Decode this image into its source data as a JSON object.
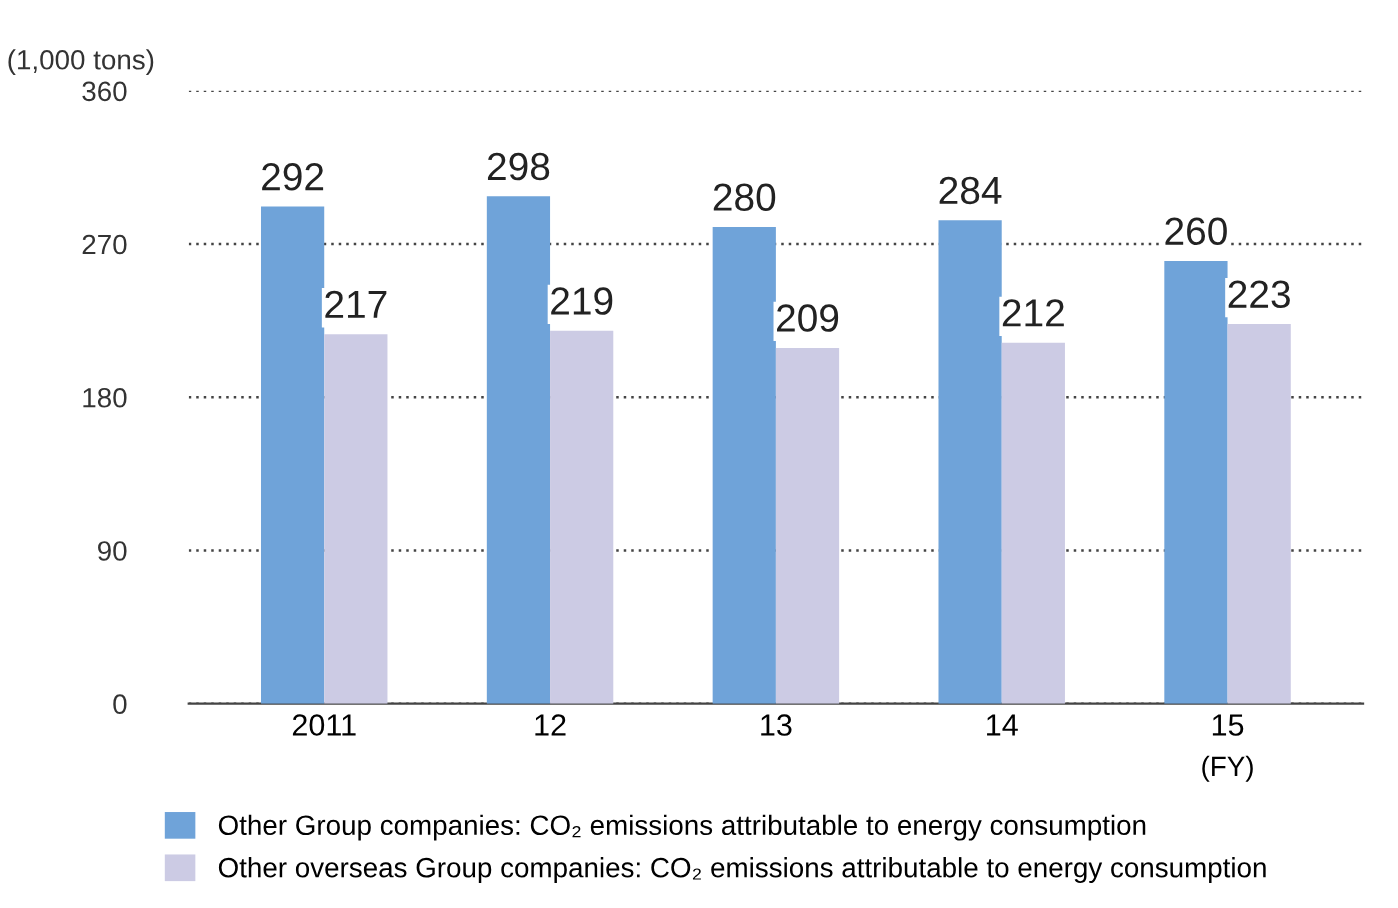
{
  "chart_data": {
    "type": "bar",
    "ylabel": "(1,000 tons)",
    "categories": [
      "2011",
      "12",
      "13",
      "14",
      "15"
    ],
    "series": [
      {
        "name": "Other Group companies: CO₂ emissions attributable to energy consumption",
        "color": "#6fa3d9",
        "values": [
          292,
          298,
          280,
          284,
          260
        ]
      },
      {
        "name": "Other overseas Group companies: CO₂ emissions attributable to energy consumption",
        "color": "#cccbe4",
        "values": [
          217,
          219,
          209,
          212,
          223
        ]
      }
    ],
    "ylim": [
      0,
      360
    ],
    "yticks": [
      0,
      90,
      180,
      270,
      360
    ],
    "grid": "y",
    "legend": "bottom",
    "data_labels": true,
    "annotations": [
      "(FY)"
    ]
  }
}
